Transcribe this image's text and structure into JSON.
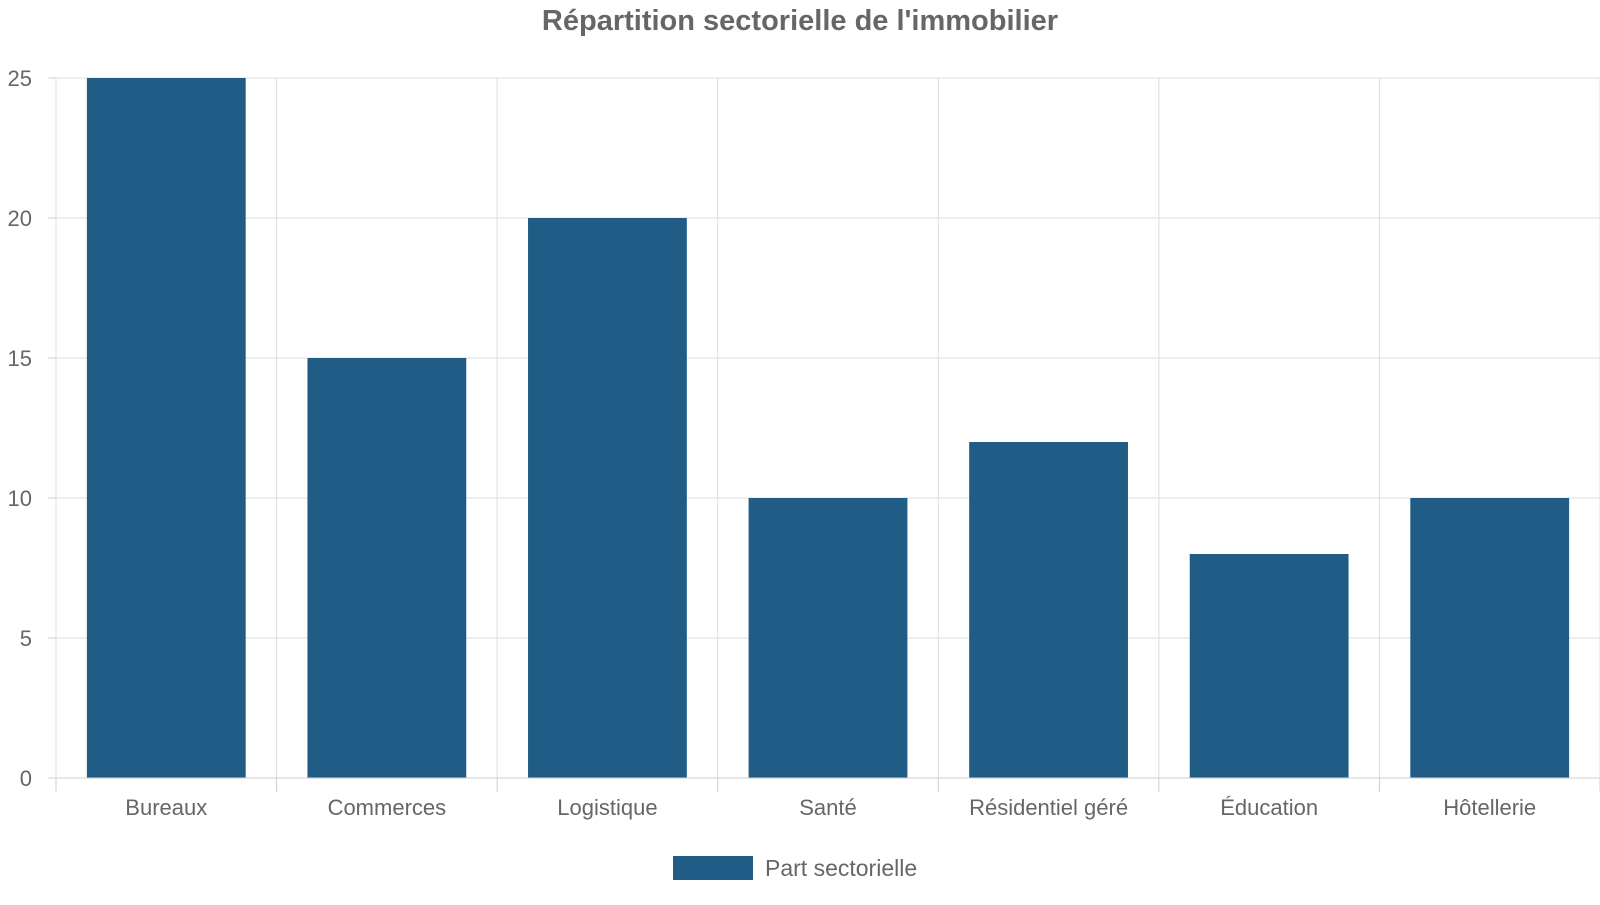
{
  "colors": {
    "bar": "#205c85",
    "grid": "#dddddd",
    "axis": "#cfcfcf",
    "text": "#666666",
    "title": "#666666"
  },
  "chart_data": {
    "type": "bar",
    "title": "Répartition sectorielle de l'immobilier",
    "xlabel": "",
    "ylabel": "",
    "categories": [
      "Bureaux",
      "Commerces",
      "Logistique",
      "Santé",
      "Résidentiel géré",
      "Éducation",
      "Hôtellerie"
    ],
    "series": [
      {
        "name": "Part sectorielle",
        "values": [
          25,
          15,
          20,
          10,
          12,
          8,
          10
        ]
      }
    ],
    "ylim": [
      0,
      25
    ],
    "yticks": [
      0,
      5,
      10,
      15,
      20,
      25
    ],
    "grid": true,
    "legend": "bottom"
  }
}
